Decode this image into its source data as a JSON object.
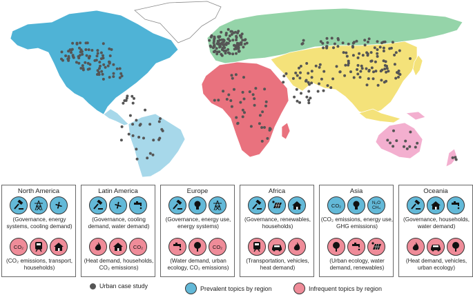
{
  "colors": {
    "north_america": "#4fb3d6",
    "latin_america": "#a7d8ea",
    "europe_nasia": "#95d4a9",
    "asia": "#f4e27a",
    "africa": "#e9727e",
    "oceania": "#f3afcf",
    "greenland": "#ffffff",
    "prevalent": "#63b9d8",
    "infrequent": "#ef8c99",
    "dot": "#555555"
  },
  "panels": [
    {
      "region": "North America",
      "prevalent_icons": [
        "gavel-icon",
        "power-tower-icon",
        "fan-icon"
      ],
      "prevalent_caption": "(Governance, energy systems, cooling demand)",
      "infrequent_icons": [
        "co2-icon",
        "train-icon",
        "house-icon"
      ],
      "infrequent_caption": "(CO₂ emissions, transport, households)"
    },
    {
      "region": "Latin America",
      "prevalent_icons": [
        "gavel-icon",
        "fan-icon",
        "faucet-icon"
      ],
      "prevalent_caption": "(Governance, cooling demand, water demand)",
      "infrequent_icons": [
        "flame-icon",
        "house-icon",
        "co2-icon"
      ],
      "infrequent_caption": "(Heat demand, households, CO₂ emissions)"
    },
    {
      "region": "Europe",
      "prevalent_icons": [
        "gavel-icon",
        "lightbulb-icon",
        "power-tower-icon"
      ],
      "prevalent_caption": "(Governance, energy use, energy systems)",
      "infrequent_icons": [
        "faucet-icon",
        "tree-icon",
        "co2-icon"
      ],
      "infrequent_caption": "(Water demand, urban ecology, CO₂ emissions)"
    },
    {
      "region": "Africa",
      "prevalent_icons": [
        "gavel-icon",
        "solar-panel-icon",
        "house-icon"
      ],
      "prevalent_caption": "(Governance, renewables, households)",
      "infrequent_icons": [
        "train-icon",
        "car-icon",
        "flame-icon"
      ],
      "infrequent_caption": "(Transportation, vehicles, heat demand)"
    },
    {
      "region": "Asia",
      "prevalent_icons": [
        "co2-icon",
        "lightbulb-icon",
        "ghg-icon"
      ],
      "prevalent_caption": "(CO₂ emissions, energy use, GHG emissions)",
      "infrequent_icons": [
        "tree-icon",
        "faucet-icon",
        "solar-panel-icon"
      ],
      "infrequent_caption": "(Urban ecology, water demand, renewables)"
    },
    {
      "region": "Oceania",
      "prevalent_icons": [
        "gavel-icon",
        "house-icon",
        "faucet-icon"
      ],
      "prevalent_caption": "(Governance, households, water demand)",
      "infrequent_icons": [
        "flame-icon",
        "car-icon",
        "tree-icon"
      ],
      "infrequent_caption": "(Heat demand, vehicles, urban ecology)"
    }
  ],
  "legend": {
    "urban": "Urban case study",
    "prevalent": "Prevalent topics by region",
    "infrequent": "Infrequent topics by region"
  },
  "icon_text": {
    "co2": "CO₂",
    "ghg": "N₂O CH₄"
  }
}
